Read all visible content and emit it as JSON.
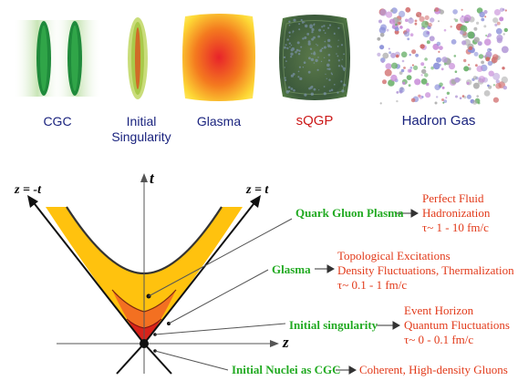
{
  "stages": [
    {
      "id": "cgc",
      "label": "CGC",
      "color": "#1a237e"
    },
    {
      "id": "initial-singularity",
      "label_lines": [
        "Initial",
        "Singularity"
      ],
      "color": "#1a237e"
    },
    {
      "id": "glasma",
      "label": "Glasma",
      "color": "#1a237e"
    },
    {
      "id": "sqgp",
      "label": "sQGP",
      "color": "#cc1a1a"
    },
    {
      "id": "hadron-gas",
      "label": "Hadron Gas",
      "color": "#1a237e"
    }
  ],
  "diagram": {
    "axis_t": "t",
    "axis_z": "z",
    "lightcone_left": "z = -t",
    "lightcone_right": "z = t"
  },
  "phases": [
    {
      "id": "qgp",
      "name": "Quark Gluon Plasma",
      "notes": [
        "Perfect Fluid",
        "Hadronization",
        "τ~ 1 - 10 fm/c"
      ]
    },
    {
      "id": "glasma",
      "name": "Glasma",
      "notes": [
        "Topological Excitations",
        "Density Fluctuations, Thermalization",
        "τ~ 0.1 - 1 fm/c"
      ]
    },
    {
      "id": "singularity",
      "name": "Initial singularity",
      "notes": [
        "Event Horizon",
        "Quantum Fluctuations",
        "τ~ 0 - 0.1 fm/c"
      ]
    },
    {
      "id": "cgc",
      "name": "Initial Nuclei as CGC",
      "notes": [
        "Coherent, High-density Gluons"
      ]
    }
  ],
  "colors": {
    "label_green": "#22aa22",
    "label_red": "#e23a1a",
    "qgp_fill": "#ffc20e",
    "glasma_fill": "#f37021",
    "singularity_fill": "#d8231a"
  }
}
